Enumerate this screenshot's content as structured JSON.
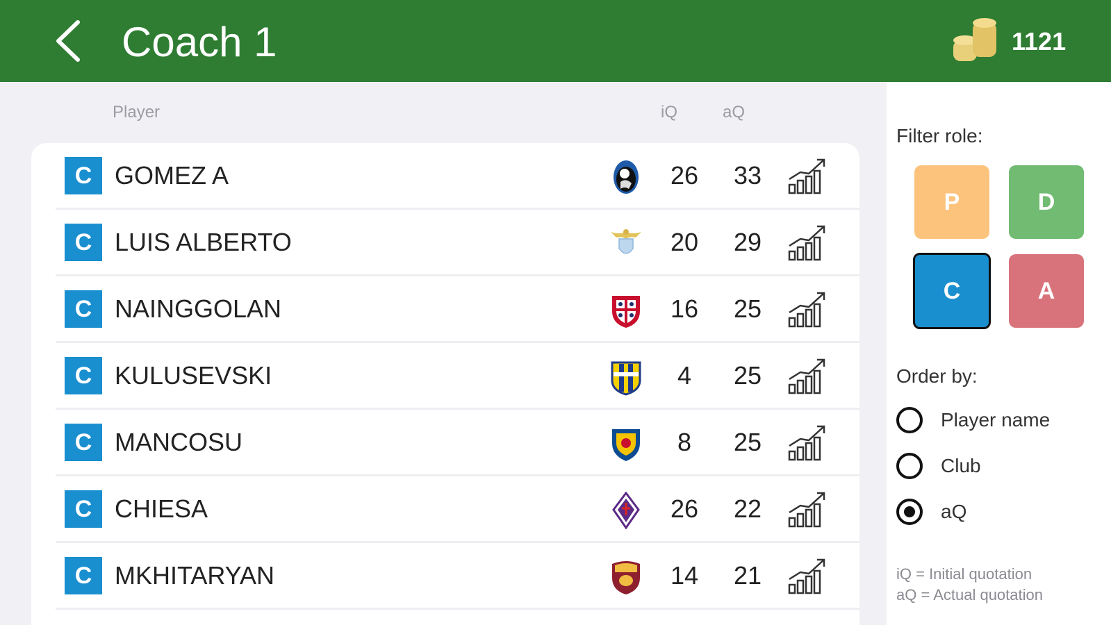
{
  "header": {
    "title": "Coach 1",
    "coins": "1121"
  },
  "columns": {
    "player": "Player",
    "iq": "iQ",
    "aq": "aQ"
  },
  "players": [
    {
      "role": "C",
      "name": "GOMEZ A",
      "club_icon": "atalanta-crest-icon",
      "iq": "26",
      "aq": "33"
    },
    {
      "role": "C",
      "name": "LUIS ALBERTO",
      "club_icon": "lazio-crest-icon",
      "iq": "20",
      "aq": "29"
    },
    {
      "role": "C",
      "name": "NAINGGOLAN",
      "club_icon": "cagliari-crest-icon",
      "iq": "16",
      "aq": "25"
    },
    {
      "role": "C",
      "name": "KULUSEVSKI",
      "club_icon": "parma-crest-icon",
      "iq": "4",
      "aq": "25"
    },
    {
      "role": "C",
      "name": "MANCOSU",
      "club_icon": "lecce-crest-icon",
      "iq": "8",
      "aq": "25"
    },
    {
      "role": "C",
      "name": "CHIESA",
      "club_icon": "fiorentina-crest-icon",
      "iq": "26",
      "aq": "22"
    },
    {
      "role": "C",
      "name": "MKHITARYAN",
      "club_icon": "roma-crest-icon",
      "iq": "14",
      "aq": "21"
    }
  ],
  "filter": {
    "label": "Filter role:",
    "roles": [
      {
        "label": "P",
        "color": "#fcc37d",
        "selected": false
      },
      {
        "label": "D",
        "color": "#72bb72",
        "selected": false
      },
      {
        "label": "C",
        "color": "#1a8fcf",
        "selected": true
      },
      {
        "label": "A",
        "color": "#d9737b",
        "selected": false
      }
    ]
  },
  "order": {
    "label": "Order by:",
    "options": [
      {
        "label": "Player name",
        "selected": false
      },
      {
        "label": "Club",
        "selected": false
      },
      {
        "label": "aQ",
        "selected": true
      }
    ]
  },
  "legend": {
    "iq": "iQ = Initial quotation",
    "aq": "aQ = Actual quotation"
  },
  "colors": {
    "header": "#2e7d32",
    "role_c": "#1a8fcf"
  }
}
